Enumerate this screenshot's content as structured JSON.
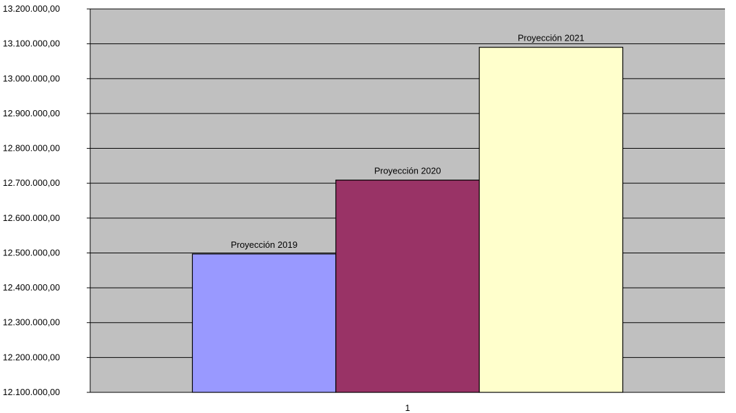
{
  "chart_data": {
    "type": "bar",
    "categories": [
      "1"
    ],
    "series": [
      {
        "name": "Proyección 2019",
        "values": [
          12497000
        ],
        "color": "#9999ff"
      },
      {
        "name": "Proyección 2020",
        "values": [
          12709000
        ],
        "color": "#993366"
      },
      {
        "name": "Proyección 2021",
        "values": [
          13090000
        ],
        "color": "#ffffcc"
      }
    ],
    "ylim": [
      12100000,
      13200000
    ],
    "y_ticks": [
      12100000,
      12200000,
      12300000,
      12400000,
      12500000,
      12600000,
      12700000,
      12800000,
      12900000,
      13000000,
      13100000,
      13200000
    ],
    "y_tick_labels": [
      "12.100.000,00",
      "12.200.000,00",
      "12.300.000,00",
      "12.400.000,00",
      "12.500.000,00",
      "12.600.000,00",
      "12.700.000,00",
      "12.800.000,00",
      "12.900.000,00",
      "13.000.000,00",
      "13.100.000,00",
      "13.200.000,00"
    ],
    "x_tick_labels": [
      "1"
    ],
    "data_labels": "series-name",
    "grid": true,
    "plot_background": "#c0c0c0",
    "title": "",
    "xlabel": "",
    "ylabel": ""
  }
}
